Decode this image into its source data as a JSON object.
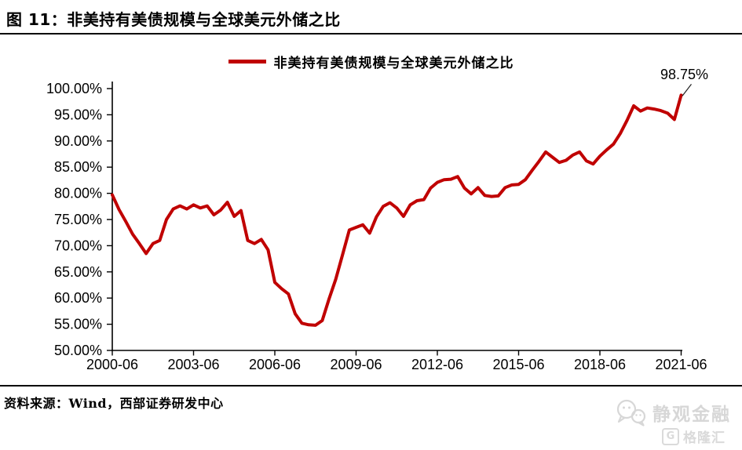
{
  "header": {
    "title": "图 11：非美持有美债规模与全球美元外储之比"
  },
  "legend": {
    "label": "非美持有美债规模与全球美元外储之比"
  },
  "footer": {
    "source": "资料来源：Wind，西部证券研发中心"
  },
  "watermark": {
    "wechat_text": "静观金融",
    "gelonghui_text": "格隆汇",
    "gelonghui_icon_letter": "G"
  },
  "chart_data": {
    "type": "line",
    "title": "非美持有美债规模与全球美元外储之比",
    "xlabel": "",
    "ylabel": "",
    "ylim": [
      50,
      100
    ],
    "y_tick_step": 5,
    "grid": false,
    "legend_position": "top",
    "y_ticks": [
      "50.00%",
      "55.00%",
      "60.00%",
      "65.00%",
      "70.00%",
      "75.00%",
      "80.00%",
      "85.00%",
      "90.00%",
      "95.00%",
      "100.00%"
    ],
    "x_ticks": [
      "2000-06",
      "2003-06",
      "2006-06",
      "2009-06",
      "2012-06",
      "2015-06",
      "2018-06",
      "2021-06"
    ],
    "x_tick_every": 12,
    "annotation": {
      "text": "98.75%",
      "x": "2021-06",
      "value": 98.75
    },
    "series": [
      {
        "name": "非美持有美债规模与全球美元外储之比",
        "color": "#c00000",
        "x": [
          "2000-06",
          "2000-09",
          "2000-12",
          "2001-03",
          "2001-06",
          "2001-09",
          "2001-12",
          "2002-03",
          "2002-06",
          "2002-09",
          "2002-12",
          "2003-03",
          "2003-06",
          "2003-09",
          "2003-12",
          "2004-03",
          "2004-06",
          "2004-09",
          "2004-12",
          "2005-03",
          "2005-06",
          "2005-09",
          "2005-12",
          "2006-03",
          "2006-06",
          "2006-09",
          "2006-12",
          "2007-03",
          "2007-06",
          "2007-09",
          "2007-12",
          "2008-03",
          "2008-06",
          "2008-09",
          "2008-12",
          "2009-03",
          "2009-06",
          "2009-09",
          "2009-12",
          "2010-03",
          "2010-06",
          "2010-09",
          "2010-12",
          "2011-03",
          "2011-06",
          "2011-09",
          "2011-12",
          "2012-03",
          "2012-06",
          "2012-09",
          "2012-12",
          "2013-03",
          "2013-06",
          "2013-09",
          "2013-12",
          "2014-03",
          "2014-06",
          "2014-09",
          "2014-12",
          "2015-03",
          "2015-06",
          "2015-09",
          "2015-12",
          "2016-03",
          "2016-06",
          "2016-09",
          "2016-12",
          "2017-03",
          "2017-06",
          "2017-09",
          "2017-12",
          "2018-03",
          "2018-06",
          "2018-09",
          "2018-12",
          "2019-03",
          "2019-06",
          "2019-09",
          "2019-12",
          "2020-03",
          "2020-06",
          "2020-09",
          "2020-12",
          "2021-03",
          "2021-06"
        ],
        "values": [
          79.7,
          76.9,
          74.6,
          72.2,
          70.4,
          68.5,
          70.4,
          71.0,
          75.0,
          77.0,
          77.6,
          77.0,
          77.8,
          77.2,
          77.6,
          75.9,
          76.8,
          78.3,
          75.6,
          76.7,
          71.0,
          70.4,
          71.2,
          69.2,
          63.0,
          61.8,
          60.8,
          57.0,
          55.2,
          54.9,
          54.8,
          55.7,
          59.8,
          63.6,
          68.3,
          73.0,
          73.5,
          74.0,
          72.4,
          75.5,
          77.5,
          78.2,
          77.2,
          75.6,
          77.8,
          78.6,
          78.8,
          81.0,
          82.1,
          82.6,
          82.7,
          83.2,
          81.0,
          79.9,
          81.1,
          79.6,
          79.4,
          79.5,
          81.1,
          81.6,
          81.7,
          82.6,
          84.4,
          86.1,
          87.9,
          86.9,
          85.9,
          86.3,
          87.3,
          87.9,
          86.2,
          85.6,
          87.1,
          88.3,
          89.4,
          91.4,
          93.9,
          96.7,
          95.7,
          96.3,
          96.1,
          95.8,
          95.3,
          94.1,
          98.75
        ]
      }
    ]
  }
}
